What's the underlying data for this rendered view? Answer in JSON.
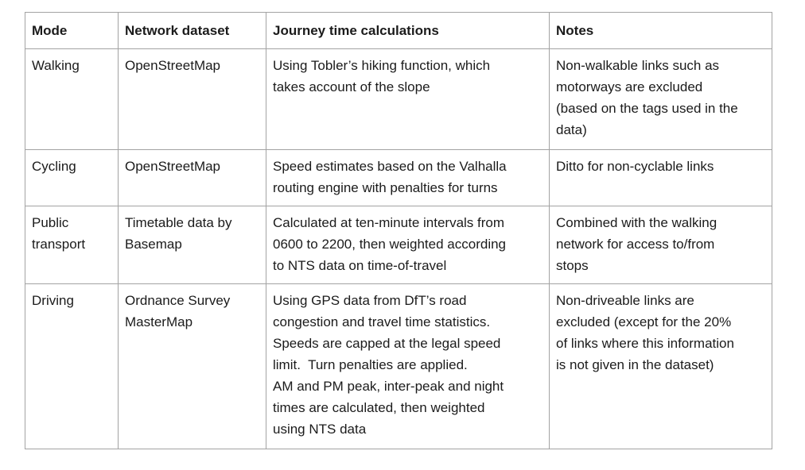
{
  "table": {
    "columns": [
      "Mode",
      "Network dataset",
      "Journey time calculations",
      "Notes"
    ],
    "rows": [
      [
        "Walking",
        "OpenStreetMap",
        "Using Tobler’s hiking function, which\ntakes account of the slope",
        "Non-walkable links such as\nmotorways are excluded\n(based on the tags used in the\ndata)"
      ],
      [
        "Cycling",
        "OpenStreetMap",
        "Speed estimates based on the Valhalla\nrouting engine with penalties for turns",
        "Ditto for non-cyclable links"
      ],
      [
        "Public\ntransport",
        "Timetable data by\nBasemap",
        "Calculated at ten-minute intervals from\n0600 to 2200, then weighted according\nto NTS data on time-of-travel",
        "Combined with the walking\nnetwork for access to/from\nstops"
      ],
      [
        "Driving",
        "Ordnance Survey\nMasterMap",
        "Using GPS data from DfT’s road\ncongestion and travel time statistics.\nSpeeds are capped at the legal speed\nlimit.  Turn penalties are applied.\nAM and PM peak, inter-peak and night\ntimes are calculated, then weighted\nusing NTS data",
        "Non-driveable links are\nexcluded (except for the 20%\nof links where this information\nis not given in the dataset)"
      ]
    ]
  }
}
